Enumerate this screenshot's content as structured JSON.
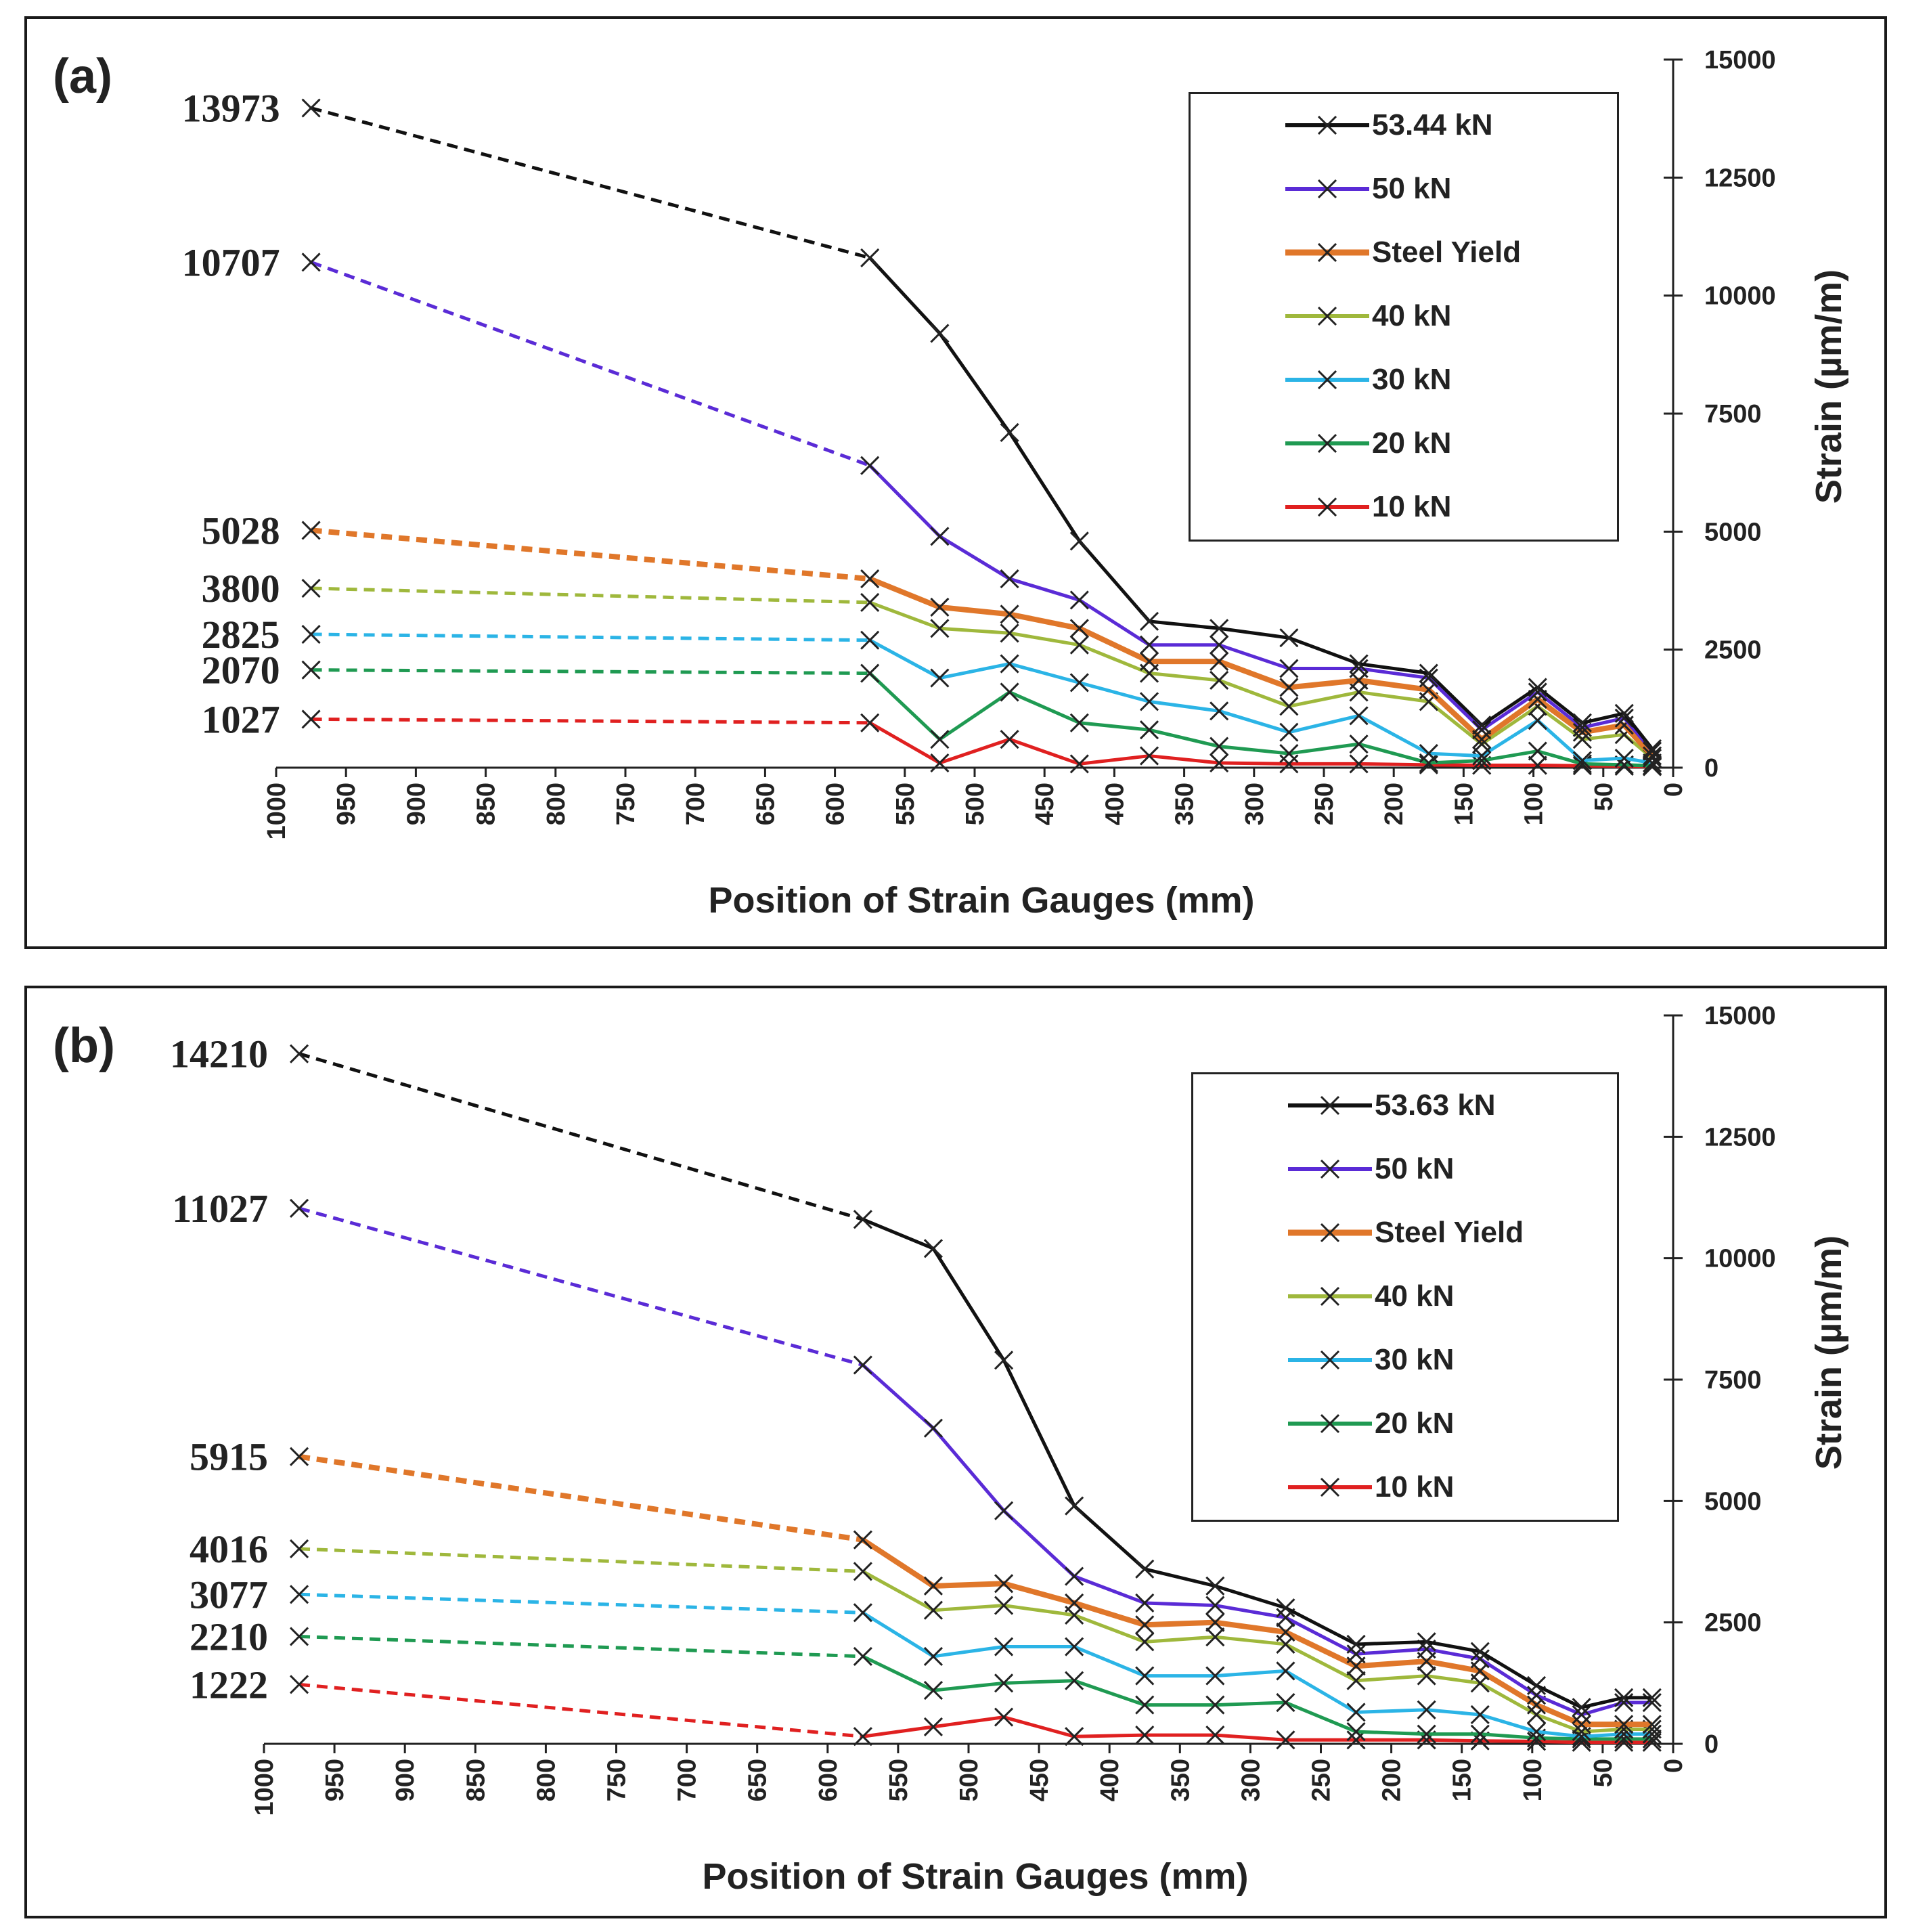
{
  "chart_data": [
    {
      "type": "line",
      "panel_label": "(a)",
      "xlabel": "Position of Strain Gauges (mm)",
      "ylabel": "Strain (µm/m)",
      "xlim": [
        1000,
        0
      ],
      "ylim": [
        0,
        15000
      ],
      "x_ticks": [
        "1000",
        "950",
        "900",
        "850",
        "800",
        "750",
        "700",
        "650",
        "600",
        "550",
        "500",
        "450",
        "400",
        "350",
        "300",
        "250",
        "200",
        "150",
        "100",
        "50",
        "0"
      ],
      "y_ticks": [
        "0",
        "2500",
        "5000",
        "7500",
        "10000",
        "12500",
        "15000"
      ],
      "x_solid": [
        575,
        525,
        475,
        425,
        375,
        325,
        275,
        225,
        175,
        137,
        97,
        65,
        35,
        15
      ],
      "x_dashed_start": 975,
      "series": [
        {
          "name": "53.44 kN",
          "color": "#111111",
          "dashed_value": 13973,
          "end_label": "13973",
          "values": [
            10800,
            9200,
            7100,
            4800,
            3100,
            2950,
            2750,
            2200,
            2000,
            900,
            1700,
            950,
            1150,
            400
          ]
        },
        {
          "name": "50 kN",
          "color": "#5a2bd6",
          "dashed_value": 10707,
          "end_label": "10707",
          "values": [
            6400,
            4900,
            4000,
            3550,
            2600,
            2600,
            2100,
            2100,
            1900,
            800,
            1600,
            850,
            1050,
            350
          ]
        },
        {
          "name": "Steel Yield",
          "color": "#e0772a",
          "dashed_value": 5028,
          "end_label": "5028",
          "values": [
            4000,
            3400,
            3250,
            2950,
            2250,
            2250,
            1700,
            1850,
            1650,
            600,
            1450,
            750,
            900,
            250
          ]
        },
        {
          "name": "40 kN",
          "color": "#9fb83c",
          "dashed_value": 3800,
          "end_label": "3800",
          "values": [
            3500,
            2950,
            2850,
            2600,
            2000,
            1850,
            1300,
            1600,
            1400,
            500,
            1300,
            600,
            700,
            200
          ]
        },
        {
          "name": "30 kN",
          "color": "#2bb4e6",
          "dashed_value": 2825,
          "end_label": "2825",
          "values": [
            2700,
            1900,
            2200,
            1800,
            1400,
            1200,
            750,
            1100,
            300,
            250,
            1000,
            150,
            200,
            100
          ]
        },
        {
          "name": "20 kN",
          "color": "#1f9a52",
          "dashed_value": 2070,
          "end_label": "2070",
          "values": [
            2000,
            600,
            1600,
            950,
            800,
            450,
            300,
            500,
            100,
            150,
            350,
            80,
            60,
            40
          ]
        },
        {
          "name": "10 kN",
          "color": "#e02020",
          "dashed_value": 1027,
          "end_label": "1027",
          "values": [
            950,
            100,
            600,
            80,
            250,
            100,
            80,
            80,
            60,
            50,
            50,
            40,
            30,
            20
          ]
        }
      ]
    },
    {
      "type": "line",
      "panel_label": "(b)",
      "xlabel": "Position of Strain Gauges (mm)",
      "ylabel": "Strain (µm/m)",
      "xlim": [
        1000,
        0
      ],
      "ylim": [
        0,
        15000
      ],
      "x_ticks": [
        "1000",
        "950",
        "900",
        "850",
        "800",
        "750",
        "700",
        "650",
        "600",
        "550",
        "500",
        "450",
        "400",
        "350",
        "300",
        "250",
        "200",
        "150",
        "100",
        "50",
        "0"
      ],
      "y_ticks": [
        "0",
        "2500",
        "5000",
        "7500",
        "10000",
        "12500",
        "15000"
      ],
      "x_solid": [
        575,
        525,
        475,
        425,
        375,
        325,
        275,
        225,
        175,
        137,
        97,
        65,
        35,
        15
      ],
      "x_dashed_start": 975,
      "series": [
        {
          "name": "53.63 kN",
          "color": "#111111",
          "dashed_value": 14210,
          "end_label": "14210",
          "values": [
            10800,
            10200,
            7900,
            4900,
            3600,
            3250,
            2800,
            2050,
            2100,
            1900,
            1200,
            750,
            950,
            950
          ]
        },
        {
          "name": "50 kN",
          "color": "#5a2bd6",
          "dashed_value": 11027,
          "end_label": "11027",
          "values": [
            7800,
            6500,
            4800,
            3450,
            2900,
            2850,
            2600,
            1850,
            1950,
            1750,
            1000,
            600,
            850,
            850
          ]
        },
        {
          "name": "Steel Yield",
          "color": "#e0772a",
          "dashed_value": 5915,
          "end_label": "5915",
          "values": [
            4200,
            3250,
            3300,
            2900,
            2450,
            2500,
            2300,
            1600,
            1700,
            1500,
            800,
            400,
            400,
            400
          ]
        },
        {
          "name": "40 kN",
          "color": "#9fb83c",
          "dashed_value": 4016,
          "end_label": "4016",
          "values": [
            3550,
            2750,
            2850,
            2650,
            2100,
            2200,
            2050,
            1300,
            1400,
            1250,
            600,
            250,
            300,
            300
          ]
        },
        {
          "name": "30 kN",
          "color": "#2bb4e6",
          "dashed_value": 3077,
          "end_label": "3077",
          "values": [
            2700,
            1800,
            2000,
            2000,
            1400,
            1400,
            1500,
            650,
            700,
            600,
            250,
            150,
            200,
            200
          ]
        },
        {
          "name": "20 kN",
          "color": "#1f9a52",
          "dashed_value": 2210,
          "end_label": "2210",
          "values": [
            1800,
            1100,
            1250,
            1300,
            800,
            800,
            850,
            250,
            200,
            200,
            120,
            100,
            100,
            100
          ]
        },
        {
          "name": "10 kN",
          "color": "#e02020",
          "dashed_value": 1222,
          "end_label": "1222",
          "values": [
            150,
            350,
            550,
            150,
            180,
            180,
            80,
            80,
            80,
            60,
            50,
            30,
            30,
            30
          ]
        }
      ]
    }
  ]
}
